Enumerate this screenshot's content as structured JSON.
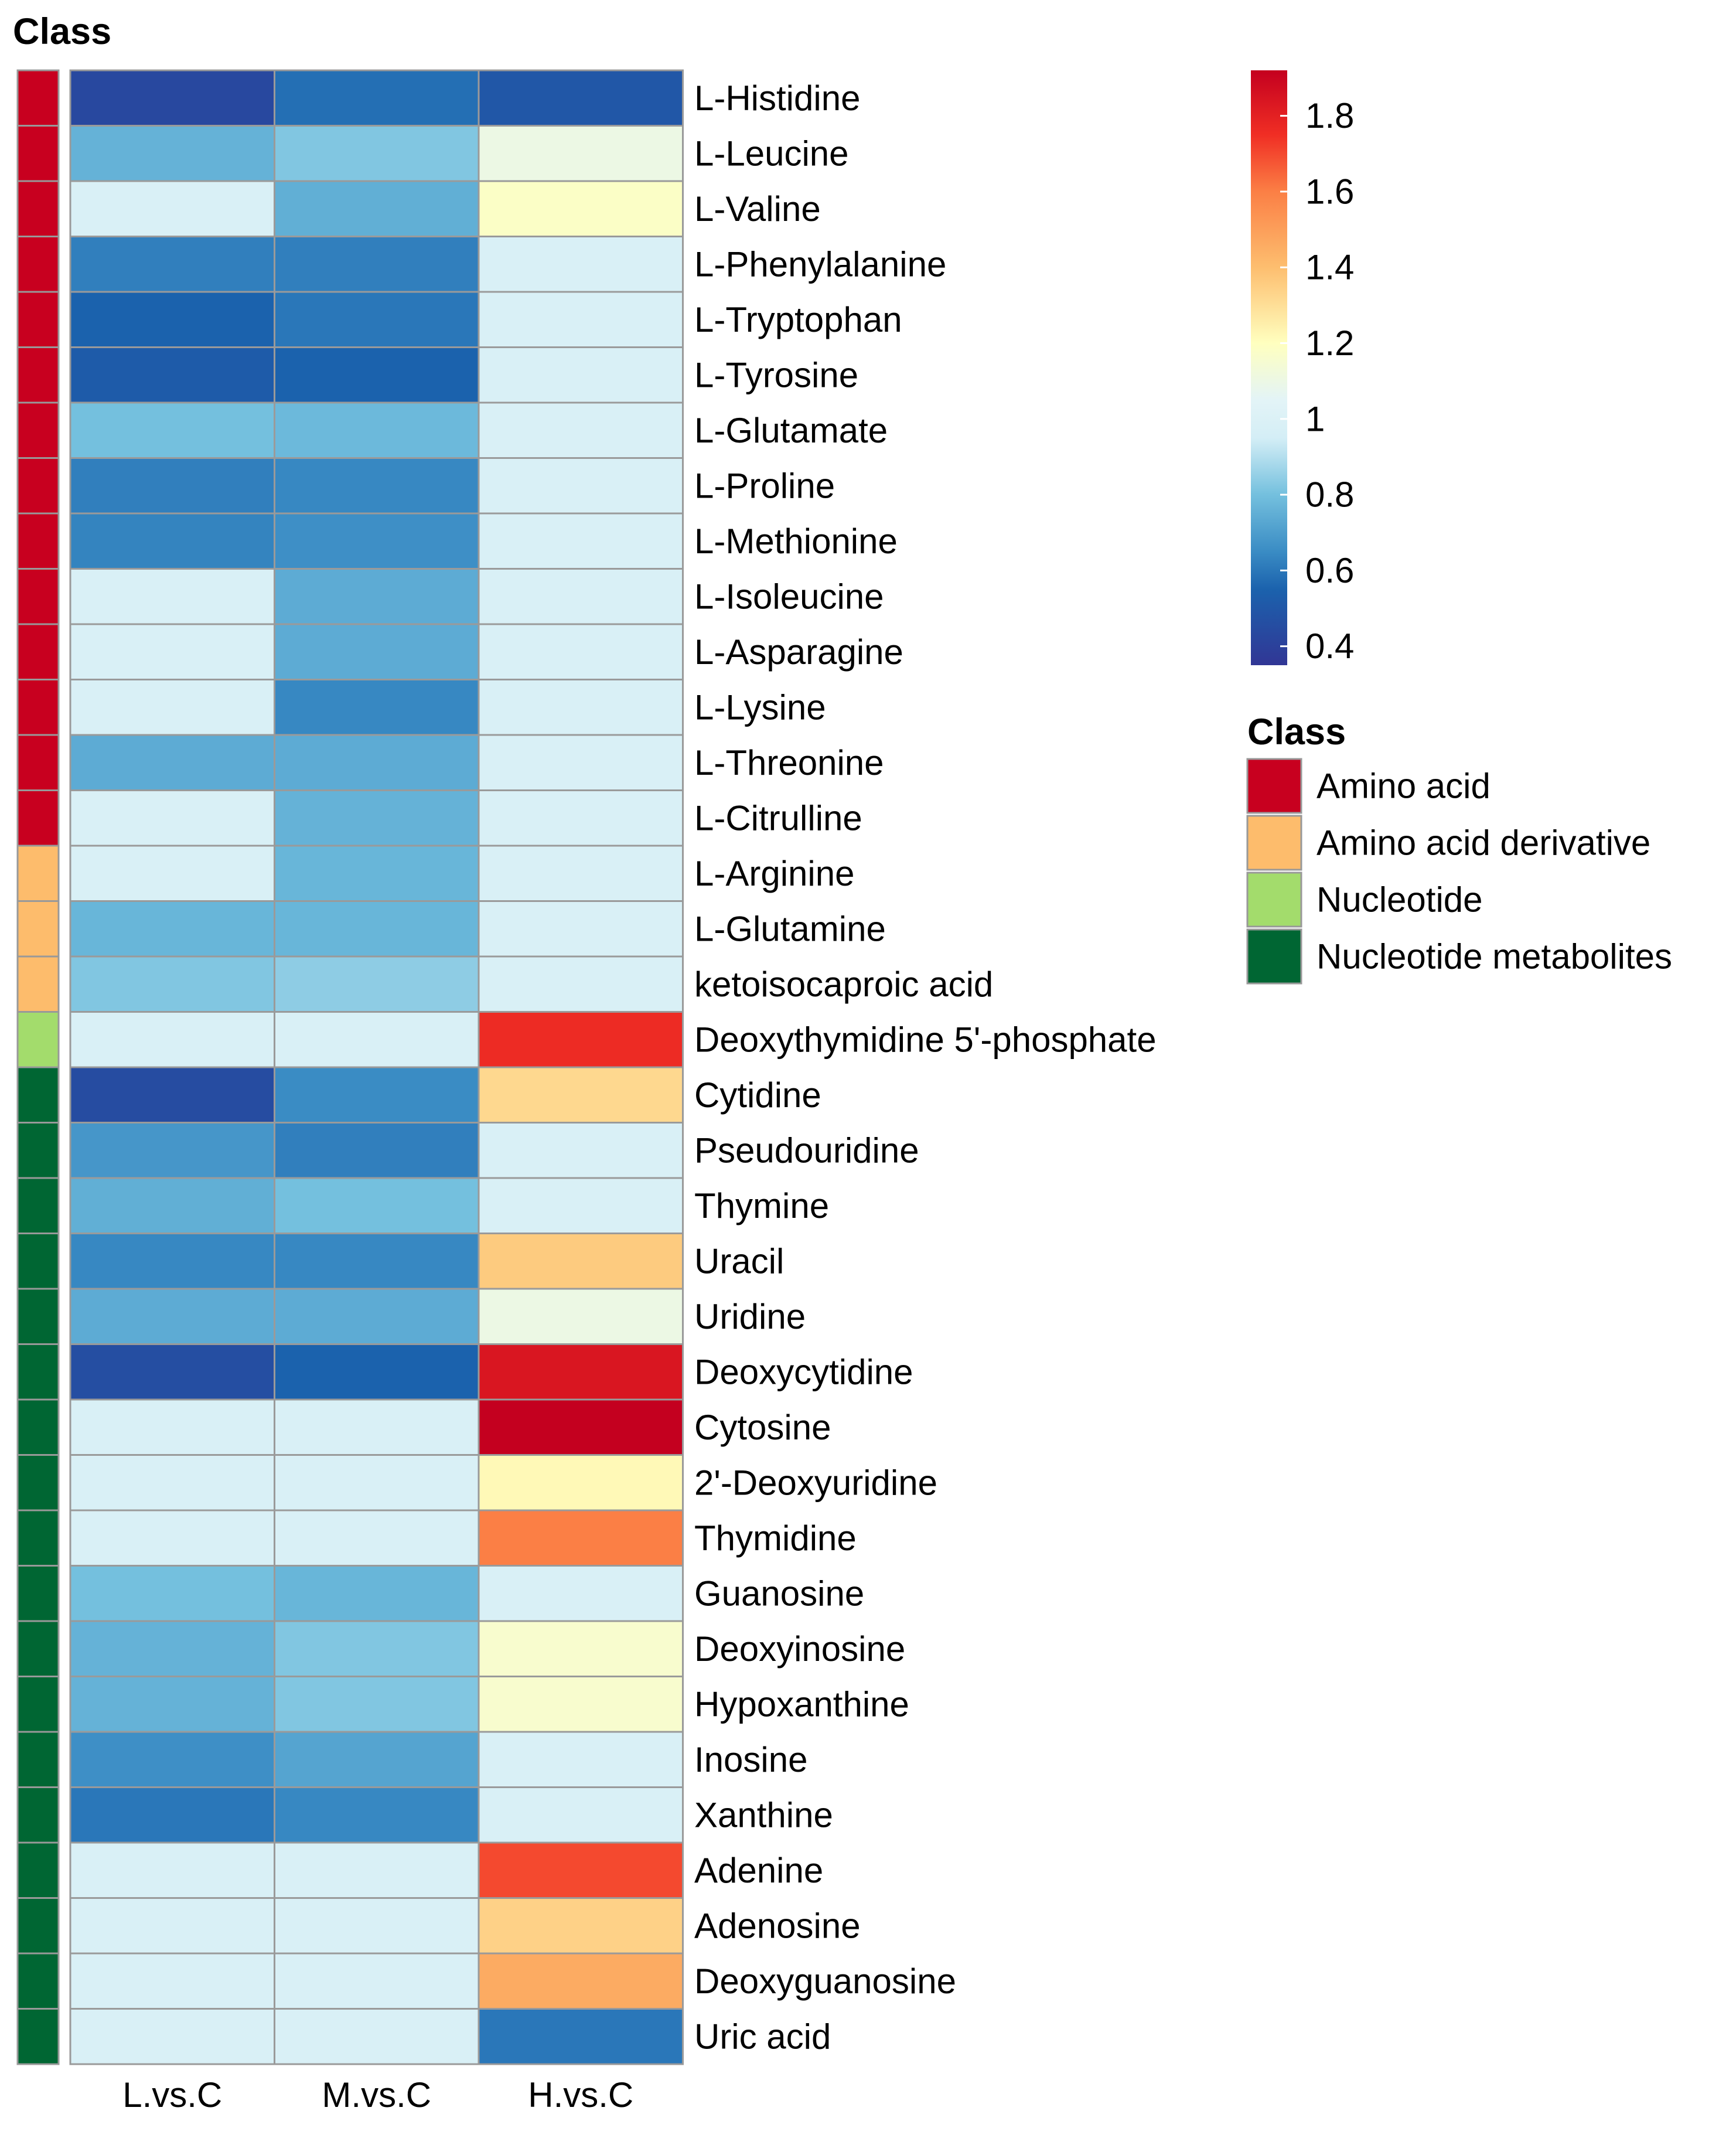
{
  "chart_data": {
    "type": "heatmap",
    "class_annotation_title": "Class",
    "columns": [
      "L.vs.C",
      "M.vs.C",
      "H.vs.C"
    ],
    "rows": [
      {
        "name": "L-Histidine",
        "class": "Amino acid",
        "values": [
          0.43,
          0.58,
          0.5
        ]
      },
      {
        "name": "L-Leucine",
        "class": "Amino acid",
        "values": [
          0.76,
          0.82,
          1.1
        ]
      },
      {
        "name": "L-Valine",
        "class": "Amino acid",
        "values": [
          0.98,
          0.75,
          1.18
        ]
      },
      {
        "name": "L-Phenylalanine",
        "class": "Amino acid",
        "values": [
          0.62,
          0.62,
          0.98
        ]
      },
      {
        "name": "L-Tryptophan",
        "class": "Amino acid",
        "values": [
          0.55,
          0.6,
          0.98
        ]
      },
      {
        "name": "L-Tyrosine",
        "class": "Amino acid",
        "values": [
          0.52,
          0.55,
          0.98
        ]
      },
      {
        "name": "L-Glutamate",
        "class": "Amino acid",
        "values": [
          0.8,
          0.78,
          0.98
        ]
      },
      {
        "name": "L-Proline",
        "class": "Amino acid",
        "values": [
          0.62,
          0.64,
          0.98
        ]
      },
      {
        "name": "L-Methionine",
        "class": "Amino acid",
        "values": [
          0.63,
          0.66,
          0.98
        ]
      },
      {
        "name": "L-Isoleucine",
        "class": "Amino acid",
        "values": [
          0.98,
          0.74,
          0.98
        ]
      },
      {
        "name": "L-Asparagine",
        "class": "Amino acid",
        "values": [
          0.98,
          0.74,
          0.98
        ]
      },
      {
        "name": "L-Lysine",
        "class": "Amino acid",
        "values": [
          0.98,
          0.64,
          0.98
        ]
      },
      {
        "name": "L-Threonine",
        "class": "Amino acid",
        "values": [
          0.74,
          0.74,
          0.98
        ]
      },
      {
        "name": "L-Citrulline",
        "class": "Amino acid",
        "values": [
          0.98,
          0.76,
          0.98
        ]
      },
      {
        "name": "L-Arginine",
        "class": "Amino acid derivative",
        "values": [
          0.98,
          0.77,
          0.98
        ]
      },
      {
        "name": "L-Glutamine",
        "class": "Amino acid derivative",
        "values": [
          0.77,
          0.77,
          0.98
        ]
      },
      {
        "name": "ketoisocaproic acid",
        "class": "Amino acid derivative",
        "values": [
          0.82,
          0.84,
          0.98
        ]
      },
      {
        "name": "Deoxythymidine 5'-phosphate",
        "class": "Nucleotide",
        "values": [
          0.98,
          0.98,
          1.76
        ]
      },
      {
        "name": "Cytidine",
        "class": "Nucleotide metabolites",
        "values": [
          0.45,
          0.65,
          1.32
        ]
      },
      {
        "name": "Pseudouridine",
        "class": "Nucleotide metabolites",
        "values": [
          0.68,
          0.62,
          0.98
        ]
      },
      {
        "name": "Thymine",
        "class": "Nucleotide metabolites",
        "values": [
          0.75,
          0.8,
          0.98
        ]
      },
      {
        "name": "Uracil",
        "class": "Nucleotide metabolites",
        "values": [
          0.64,
          0.64,
          1.36
        ]
      },
      {
        "name": "Uridine",
        "class": "Nucleotide metabolites",
        "values": [
          0.74,
          0.74,
          1.1
        ]
      },
      {
        "name": "Deoxycytidine",
        "class": "Nucleotide metabolites",
        "values": [
          0.46,
          0.55,
          1.84
        ]
      },
      {
        "name": "Cytosine",
        "class": "Nucleotide metabolites",
        "values": [
          0.98,
          0.98,
          1.92
        ]
      },
      {
        "name": "2'-Deoxyuridine",
        "class": "Nucleotide metabolites",
        "values": [
          0.98,
          0.98,
          1.22
        ]
      },
      {
        "name": "Thymidine",
        "class": "Nucleotide metabolites",
        "values": [
          0.98,
          0.98,
          1.6
        ]
      },
      {
        "name": "Guanosine",
        "class": "Nucleotide metabolites",
        "values": [
          0.8,
          0.77,
          0.98
        ]
      },
      {
        "name": "Deoxyinosine",
        "class": "Nucleotide metabolites",
        "values": [
          0.76,
          0.82,
          1.16
        ]
      },
      {
        "name": "Hypoxanthine",
        "class": "Nucleotide metabolites",
        "values": [
          0.76,
          0.82,
          1.16
        ]
      },
      {
        "name": "Inosine",
        "class": "Nucleotide metabolites",
        "values": [
          0.66,
          0.72,
          0.98
        ]
      },
      {
        "name": "Xanthine",
        "class": "Nucleotide metabolites",
        "values": [
          0.6,
          0.64,
          0.98
        ]
      },
      {
        "name": "Adenine",
        "class": "Nucleotide metabolites",
        "values": [
          0.98,
          0.98,
          1.7
        ]
      },
      {
        "name": "Adenosine",
        "class": "Nucleotide metabolites",
        "values": [
          0.98,
          0.98,
          1.34
        ]
      },
      {
        "name": "Deoxyguanosine",
        "class": "Nucleotide metabolites",
        "values": [
          0.98,
          0.98,
          1.46
        ]
      },
      {
        "name": "Uric acid",
        "class": "Nucleotide metabolites",
        "values": [
          0.98,
          0.98,
          0.6
        ]
      }
    ],
    "color_scale": {
      "range": [
        0.35,
        1.92
      ],
      "ticks": [
        {
          "value": 1.8,
          "label": "1.8"
        },
        {
          "value": 1.6,
          "label": "1.6"
        },
        {
          "value": 1.4,
          "label": "1.4"
        },
        {
          "value": 1.2,
          "label": "1.2"
        },
        {
          "value": 1.0,
          "label": "1"
        },
        {
          "value": 0.8,
          "label": "0.8"
        },
        {
          "value": 0.6,
          "label": "0.6"
        },
        {
          "value": 0.4,
          "label": "0.4"
        }
      ],
      "stops": [
        {
          "value": 0.35,
          "color": "#313695"
        },
        {
          "value": 0.55,
          "color": "#1b62ad"
        },
        {
          "value": 0.65,
          "color": "#3a8cc4"
        },
        {
          "value": 0.8,
          "color": "#74c0de"
        },
        {
          "value": 0.95,
          "color": "#d4eef6"
        },
        {
          "value": 1.05,
          "color": "#e3f4f7"
        },
        {
          "value": 1.2,
          "color": "#ffffbf"
        },
        {
          "value": 1.4,
          "color": "#fdbe6f"
        },
        {
          "value": 1.6,
          "color": "#fb7f45"
        },
        {
          "value": 1.75,
          "color": "#f02e24"
        },
        {
          "value": 1.92,
          "color": "#c4001f"
        }
      ]
    },
    "class_legend": {
      "title": "Class",
      "items": [
        {
          "label": "Amino acid",
          "color": "#c8001f"
        },
        {
          "label": "Amino acid derivative",
          "color": "#fdbc6c"
        },
        {
          "label": "Nucleotide",
          "color": "#a3dc6c"
        },
        {
          "label": "Nucleotide metabolites",
          "color": "#006633"
        }
      ]
    }
  }
}
